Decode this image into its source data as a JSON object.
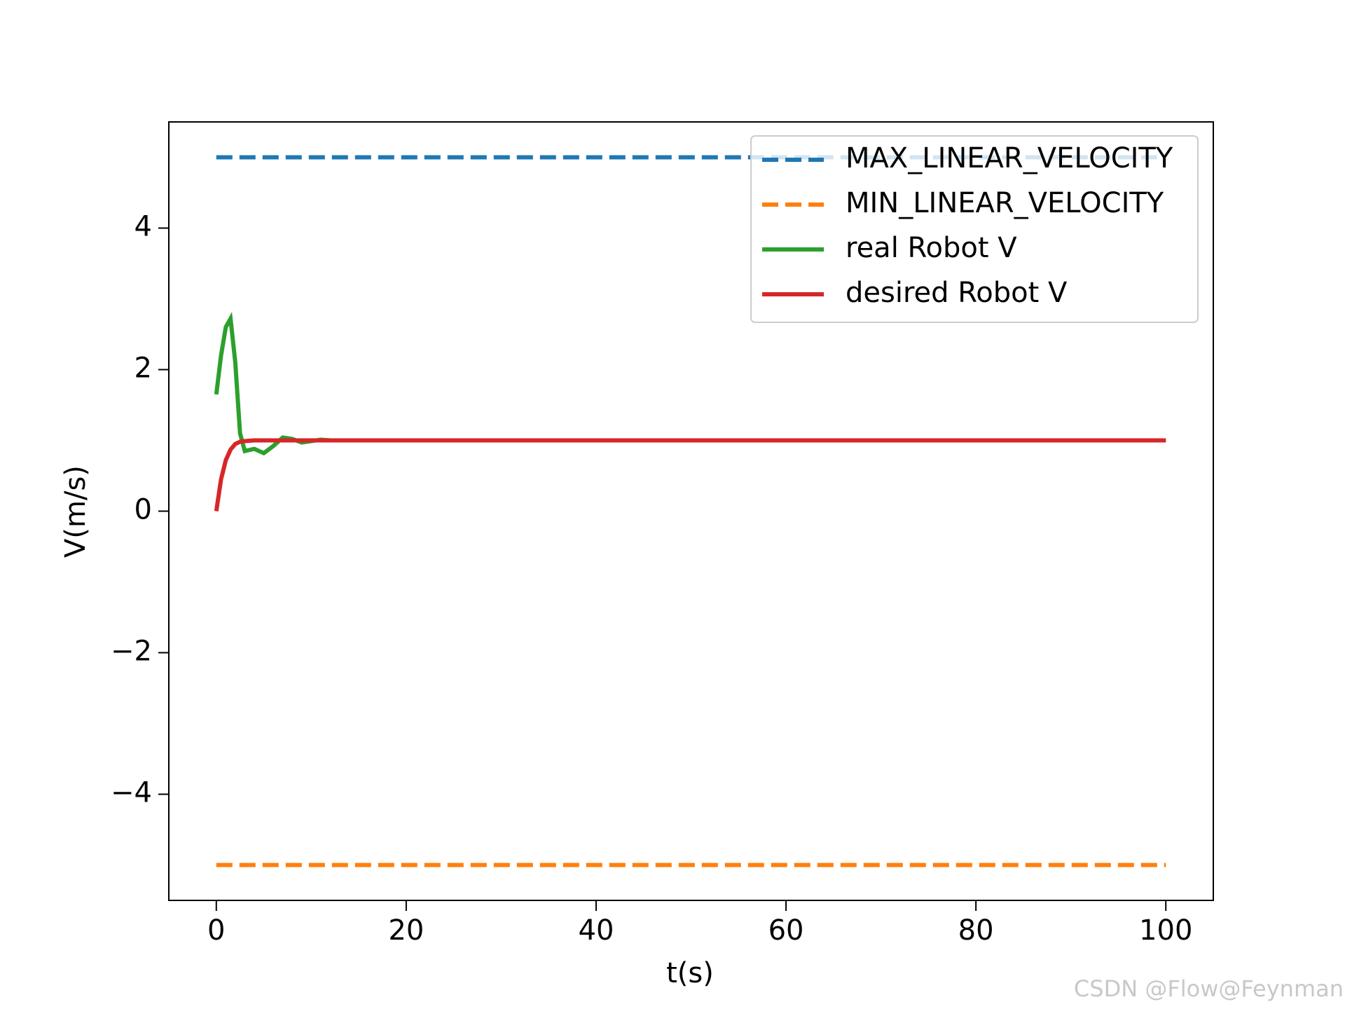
{
  "chart_data": {
    "type": "line",
    "xlabel": "t(s)",
    "ylabel": "V(m/s)",
    "x": [
      0,
      0.5,
      1,
      1.5,
      2,
      2.5,
      3,
      4,
      5,
      6,
      7,
      8,
      9,
      10,
      11,
      12,
      15,
      20,
      40,
      60,
      80,
      100
    ],
    "series": [
      {
        "name": "MAX_LINEAR_VELOCITY",
        "color": "#1f77b4",
        "dashed": true,
        "values": [
          5,
          5,
          5,
          5,
          5,
          5,
          5,
          5,
          5,
          5,
          5,
          5,
          5,
          5,
          5,
          5,
          5,
          5,
          5,
          5,
          5,
          5
        ]
      },
      {
        "name": "MIN_LINEAR_VELOCITY",
        "color": "#ff7f0e",
        "dashed": true,
        "values": [
          -5,
          -5,
          -5,
          -5,
          -5,
          -5,
          -5,
          -5,
          -5,
          -5,
          -5,
          -5,
          -5,
          -5,
          -5,
          -5,
          -5,
          -5,
          -5,
          -5,
          -5,
          -5
        ]
      },
      {
        "name": "real Robot V",
        "color": "#2ca02c",
        "dashed": false,
        "values": [
          1.65,
          2.2,
          2.6,
          2.72,
          2.1,
          1.1,
          0.85,
          0.88,
          0.82,
          0.92,
          1.04,
          1.02,
          0.97,
          0.99,
          1.01,
          1,
          1,
          1,
          1,
          1,
          1,
          1
        ]
      },
      {
        "name": "desired Robot V",
        "color": "#d62728",
        "dashed": false,
        "values": [
          0,
          0.45,
          0.72,
          0.87,
          0.95,
          0.98,
          0.99,
          1,
          1,
          1,
          1,
          1,
          1,
          1,
          1,
          1,
          1,
          1,
          1,
          1,
          1,
          1
        ]
      }
    ],
    "xlim": [
      -5,
      105
    ],
    "xticks": [
      0,
      20,
      40,
      60,
      80,
      100
    ],
    "ylim": [
      -5.5,
      5.5
    ],
    "yticks": [
      {
        "value": -4,
        "label": "−4"
      },
      {
        "value": -2,
        "label": "−2"
      },
      0,
      2,
      4
    ],
    "legend": "upper right",
    "watermark": "CSDN @Flow@Feynman"
  }
}
